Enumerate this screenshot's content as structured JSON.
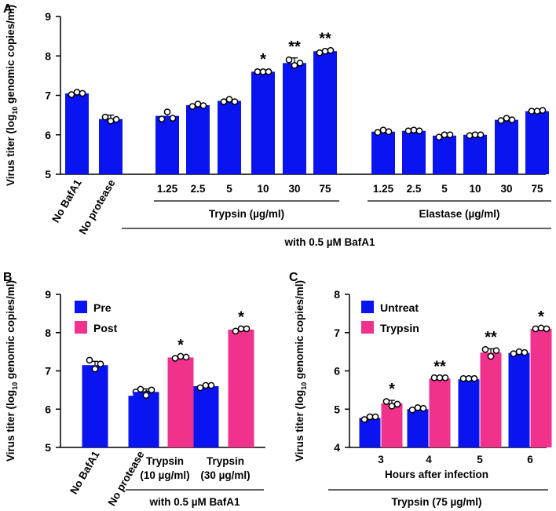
{
  "colors": {
    "blue": "#0A14F0",
    "pink": "#F0328C"
  },
  "chart_data": [
    {
      "panel": "A",
      "type": "bar",
      "ylabel_parts": [
        "Virus titer (log",
        "10",
        " genomic copies/ml)"
      ],
      "ylim": [
        5,
        9
      ],
      "yticks": [
        "5",
        "6",
        "7",
        "8",
        "9"
      ],
      "categories": [
        "No BafA1",
        "No protease",
        "1.25",
        "2.5",
        "5",
        "10",
        "30",
        "75",
        "1.25",
        "2.5",
        "5",
        "10",
        "30",
        "75"
      ],
      "values": [
        7.05,
        6.4,
        6.48,
        6.75,
        6.86,
        7.6,
        7.82,
        8.12,
        6.08,
        6.1,
        5.98,
        6.0,
        6.38,
        6.6
      ],
      "errors": [
        0.05,
        0.1,
        0.1,
        0.05,
        0.05,
        0.03,
        0.13,
        0.03,
        0.04,
        0.03,
        0.05,
        0.04,
        0.06,
        0.04
      ],
      "points": [
        [
          7.02,
          7.08,
          7.05
        ],
        [
          6.45,
          6.35,
          6.39
        ],
        [
          6.4,
          6.58,
          6.42
        ],
        [
          6.72,
          6.78,
          6.74
        ],
        [
          6.84,
          6.9,
          6.84
        ],
        [
          7.6,
          7.6,
          7.6
        ],
        [
          7.9,
          7.76,
          7.82
        ],
        [
          8.08,
          8.12,
          8.14
        ],
        [
          6.06,
          6.12,
          6.08
        ],
        [
          6.1,
          6.12,
          6.1
        ],
        [
          5.94,
          6.0,
          6.0
        ],
        [
          5.98,
          6.0,
          6.0
        ],
        [
          6.36,
          6.42,
          6.38
        ],
        [
          6.6,
          6.6,
          6.62
        ]
      ],
      "significance": [
        "",
        "",
        "",
        "",
        "",
        "*",
        "**",
        "**",
        "",
        "",
        "",
        "",
        "",
        ""
      ],
      "group_labels": [
        "Trypsin (µg/ml)",
        "Elastase (µg/ml)"
      ],
      "bottom_label": "with 0.5 µM BafA1"
    },
    {
      "panel": "B",
      "type": "bar",
      "ylabel_parts": [
        "Virus titer (log",
        "10",
        " genomic copies/ml)"
      ],
      "ylim": [
        5,
        9
      ],
      "yticks": [
        "5",
        "6",
        "7",
        "8",
        "9"
      ],
      "legend": [
        {
          "name": "Pre",
          "color": "blue"
        },
        {
          "name": "Post",
          "color": "pink"
        }
      ],
      "categories": [
        "No BafA1",
        "No protease",
        "Trypsin (10 µg/ml)",
        "Trypsin (30 µg/ml)"
      ],
      "category_lines": [
        [
          "No BafA1"
        ],
        [
          "No protease"
        ],
        [
          "Trypsin",
          "(10 µg/ml)"
        ],
        [
          "Trypsin",
          "(30 µg/ml)"
        ]
      ],
      "series": [
        {
          "name": "Pre",
          "values": [
            7.15,
            6.35,
            6.45,
            6.6
          ],
          "errors": [
            0.1,
            0.1,
            0.08,
            0.04
          ],
          "points": [
            [
              7.28,
              7.05,
              7.18
            ],
            [
              6.45,
              6.22,
              6.4
            ],
            [
              6.52,
              6.36,
              6.5
            ],
            [
              6.56,
              6.62,
              6.62
            ]
          ],
          "significance": [
            "",
            "",
            "",
            ""
          ]
        },
        {
          "name": "Post",
          "values": [
            null,
            null,
            7.35,
            8.08
          ],
          "errors": [
            null,
            null,
            0.03,
            0.03
          ],
          "points": [
            null,
            null,
            [
              7.33,
              7.38,
              7.36
            ],
            [
              8.04,
              8.1,
              8.1
            ]
          ],
          "significance": [
            "",
            "",
            "*",
            "*"
          ]
        }
      ],
      "bottom_label": "with 0.5 µM BafA1"
    },
    {
      "panel": "C",
      "type": "bar",
      "ylabel_parts": [
        "Virus titer (log",
        "10",
        " genomic copies/ml)"
      ],
      "ylim": [
        4,
        8
      ],
      "yticks": [
        "4",
        "5",
        "6",
        "7",
        "8"
      ],
      "legend": [
        {
          "name": "Untreat",
          "color": "blue"
        },
        {
          "name": "Trypsin",
          "color": "pink"
        }
      ],
      "categories": [
        "3",
        "4",
        "5",
        "6"
      ],
      "series": [
        {
          "name": "Untreat",
          "values": [
            4.77,
            5.0,
            5.78,
            6.47
          ],
          "errors": [
            0.02,
            0.04,
            0.02,
            0.04
          ],
          "points": [
            [
              4.73,
              4.8,
              4.8
            ],
            [
              4.98,
              5.04,
              5.02
            ],
            [
              5.8,
              5.8,
              5.8
            ],
            [
              6.45,
              6.5,
              6.48
            ]
          ],
          "significance": [
            "",
            "",
            "",
            ""
          ]
        },
        {
          "name": "Trypsin",
          "values": [
            5.15,
            5.8,
            6.48,
            7.1
          ],
          "errors": [
            0.08,
            0.02,
            0.1,
            0.02
          ],
          "points": [
            [
              5.2,
              5.08,
              5.13
            ],
            [
              5.82,
              5.82,
              5.82
            ],
            [
              6.56,
              6.38,
              6.53
            ],
            [
              7.1,
              7.12,
              7.1
            ]
          ],
          "significance": [
            "*",
            "**",
            "**",
            "*"
          ]
        }
      ],
      "xlabel": "Hours after infection",
      "bottom_label": "Trypsin (75 µg/ml)"
    }
  ]
}
